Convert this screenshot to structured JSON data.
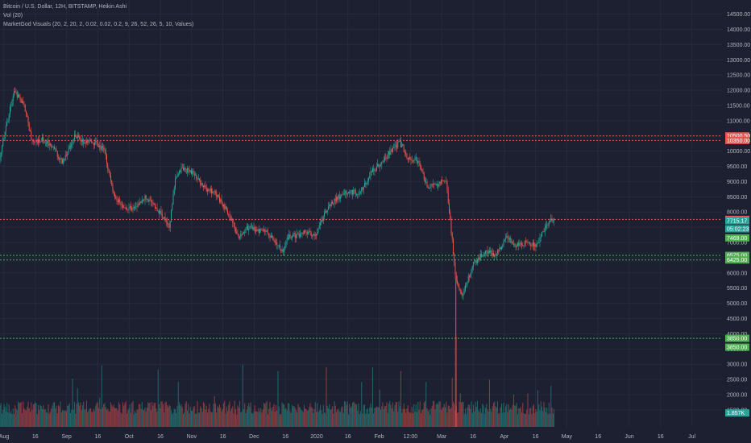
{
  "legend": {
    "line1": "Bitcoin / U.S. Dollar, 12H, BITSTAMP, Heikin Ashi",
    "line2": "Vol (20)",
    "line3": "MarketGod Visuals (20, 2, 20, 2, 0.02, 0.02, 0.2, 9, 26, 52, 26, 5, 10, Values)"
  },
  "colors": {
    "background": "#1c2030",
    "grid": "#262b3d",
    "up": "#26a69a",
    "down": "#ef5350",
    "axis_text": "#b2b5be",
    "resistance": "#ef5350",
    "support": "#4caf50"
  },
  "chart_data": {
    "type": "candlestick",
    "title": "Bitcoin / U.S. Dollar, 12H, BITSTAMP, Heikin Ashi",
    "y_axis": {
      "ticks": [
        "14500.00",
        "14000.00",
        "13500.00",
        "13000.00",
        "12500.00",
        "12000.00",
        "11500.00",
        "11000.00",
        "10500.00",
        "10000.00",
        "9500.00",
        "9000.00",
        "8500.00",
        "8000.00",
        "7500.00",
        "7000.00",
        "6500.00",
        "6000.00",
        "5500.00",
        "5000.00",
        "4500.00",
        "4000.00",
        "3500.00",
        "3000.00",
        "2500.00",
        "2000.00",
        "1500.00"
      ],
      "ylim": [
        1100,
        14700
      ]
    },
    "x_axis": {
      "ticks": [
        "Aug",
        "16",
        "Sep",
        "16",
        "Oct",
        "16",
        "Nov",
        "16",
        "Dec",
        "16",
        "2020",
        "16",
        "Feb",
        "12:00",
        "Mar",
        "16",
        "Apr",
        "16",
        "May",
        "16",
        "Jun",
        "16",
        "Jul"
      ]
    },
    "price_path": [
      [
        "2019-07-29",
        9500
      ],
      [
        "2019-08-01",
        10500
      ],
      [
        "2019-08-06",
        12000
      ],
      [
        "2019-08-11",
        11500
      ],
      [
        "2019-08-15",
        10300
      ],
      [
        "2019-08-20",
        10400
      ],
      [
        "2019-08-25",
        10150
      ],
      [
        "2019-08-30",
        9600
      ],
      [
        "2019-09-05",
        10500
      ],
      [
        "2019-09-10",
        10250
      ],
      [
        "2019-09-15",
        10300
      ],
      [
        "2019-09-20",
        10000
      ],
      [
        "2019-09-24",
        8600
      ],
      [
        "2019-09-29",
        8200
      ],
      [
        "2019-10-04",
        8100
      ],
      [
        "2019-10-10",
        8500
      ],
      [
        "2019-10-16",
        8100
      ],
      [
        "2019-10-22",
        7500
      ],
      [
        "2019-10-25",
        9200
      ],
      [
        "2019-10-28",
        9400
      ],
      [
        "2019-11-03",
        9300
      ],
      [
        "2019-11-08",
        8800
      ],
      [
        "2019-11-14",
        8600
      ],
      [
        "2019-11-20",
        8000
      ],
      [
        "2019-11-25",
        7200
      ],
      [
        "2019-11-30",
        7500
      ],
      [
        "2019-12-05",
        7400
      ],
      [
        "2019-12-10",
        7300
      ],
      [
        "2019-12-17",
        6700
      ],
      [
        "2019-12-20",
        7200
      ],
      [
        "2019-12-28",
        7300
      ],
      [
        "2020-01-03",
        7300
      ],
      [
        "2020-01-08",
        8100
      ],
      [
        "2020-01-14",
        8500
      ],
      [
        "2020-01-19",
        8700
      ],
      [
        "2020-01-24",
        8600
      ],
      [
        "2020-01-30",
        9300
      ],
      [
        "2020-02-05",
        9700
      ],
      [
        "2020-02-09",
        10000
      ],
      [
        "2020-02-13",
        10300
      ],
      [
        "2020-02-17",
        9800
      ],
      [
        "2020-02-22",
        9700
      ],
      [
        "2020-02-27",
        8800
      ],
      [
        "2020-03-03",
        8900
      ],
      [
        "2020-03-07",
        9100
      ],
      [
        "2020-03-09",
        7900
      ],
      [
        "2020-03-12",
        5800
      ],
      [
        "2020-03-15",
        5200
      ],
      [
        "2020-03-20",
        6200
      ],
      [
        "2020-03-26",
        6700
      ],
      [
        "2020-04-01",
        6600
      ],
      [
        "2020-04-06",
        7200
      ],
      [
        "2020-04-11",
        6900
      ],
      [
        "2020-04-16",
        7000
      ],
      [
        "2020-04-21",
        6900
      ],
      [
        "2020-04-27",
        7700
      ],
      [
        "2020-04-30",
        7715
      ]
    ],
    "volume_ylim": [
      0,
      3500
    ],
    "levels": [
      {
        "value": 10500.5,
        "label": "10500.50",
        "kind": "resistance"
      },
      {
        "value": 10350,
        "label": "10350.00",
        "kind": "resistance"
      },
      {
        "value": 7756.69,
        "label": "7756.69",
        "kind": "resistance"
      },
      {
        "value": 6575,
        "label": "6575.00",
        "kind": "support"
      },
      {
        "value": 6425,
        "label": "6425.00",
        "kind": "support"
      },
      {
        "value": 3850,
        "label": "3850.00",
        "kind": "support"
      }
    ],
    "tags": [
      {
        "value": 7715.17,
        "label": "7715.17",
        "kind": "last"
      },
      {
        "value": 7450,
        "label": "05:02:23",
        "kind": "countdown"
      },
      {
        "value": 7150,
        "label": "7469.00",
        "kind": "support"
      },
      {
        "value": 3560,
        "label": "3850.00",
        "kind": "support"
      },
      {
        "value": 1400,
        "label": "1.857K",
        "kind": "volume"
      }
    ],
    "levels_label": "",
    "grid": true
  }
}
